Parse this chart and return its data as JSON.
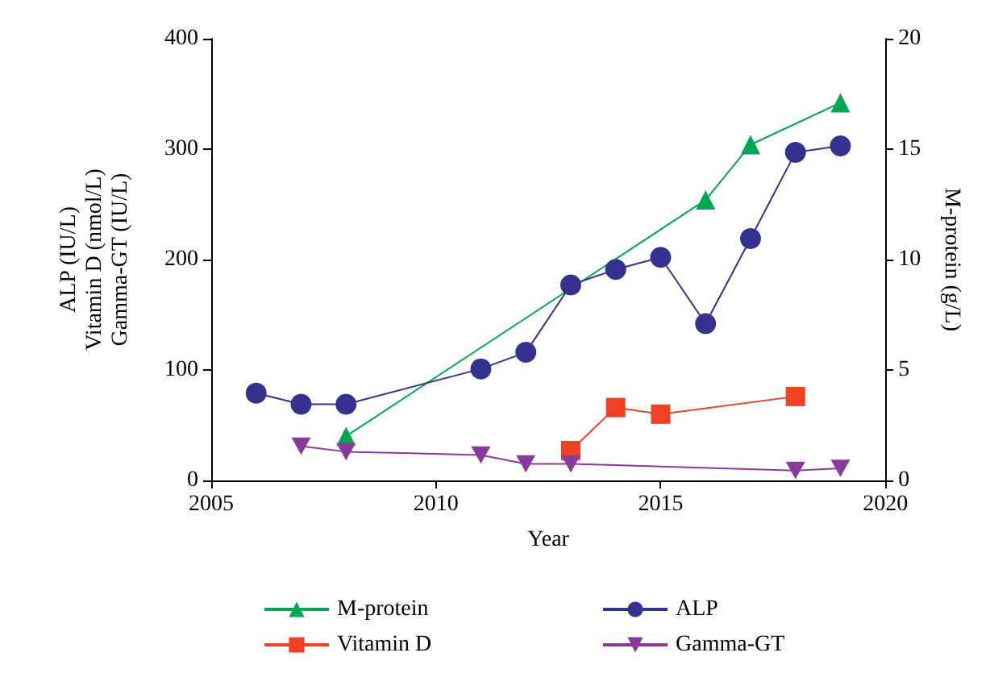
{
  "chart_data": {
    "type": "line",
    "xlabel": "Year",
    "ylabel": "ALP (IU/L)\nVitamin D (nmol/L)\nGamma-GT (IU/L)",
    "y2label": "M-protein (g/L)",
    "xlim": [
      2005,
      2020
    ],
    "xticks": [
      2005,
      2010,
      2015,
      2020
    ],
    "ylim": [
      0,
      400
    ],
    "yticks": [
      0,
      100,
      200,
      300,
      400
    ],
    "y2lim": [
      0,
      20
    ],
    "y2ticks": [
      0,
      5,
      10,
      15,
      20
    ],
    "grid": false,
    "legend": "bottom",
    "line_style": "solid",
    "series": [
      {
        "name": "M-protein",
        "color": "#00a651",
        "marker": "triangle",
        "axis": "y2",
        "x": [
          2008,
          2016,
          2017,
          2019
        ],
        "values": [
          2.0,
          12.7,
          15.2,
          17.1
        ]
      },
      {
        "name": "Vitamin D",
        "color": "#f04124",
        "marker": "square",
        "x": [
          2013,
          2014,
          2015,
          2018
        ],
        "values": [
          27,
          66,
          60,
          76
        ]
      },
      {
        "name": "ALP",
        "color": "#35318f",
        "marker": "circle",
        "x": [
          2006,
          2007,
          2008,
          2011,
          2012,
          2013,
          2014,
          2015,
          2016,
          2017,
          2018,
          2019
        ],
        "values": [
          79,
          69,
          69,
          101,
          116,
          177,
          191,
          202,
          142,
          219,
          297,
          303
        ]
      },
      {
        "name": "Gamma-GT",
        "color": "#8a3a9a",
        "marker": "triangle-down",
        "x": [
          2007,
          2008,
          2011,
          2012,
          2013,
          2018,
          2019
        ],
        "values": [
          31,
          26,
          23,
          15,
          15,
          9,
          11
        ]
      }
    ]
  }
}
